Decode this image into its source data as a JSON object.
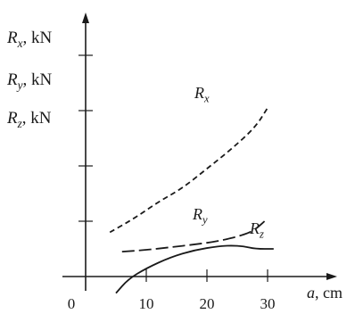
{
  "chart_data": {
    "type": "line",
    "title": "",
    "ylabels": [
      {
        "sym": "R",
        "sub": "x",
        "unit": ", kN"
      },
      {
        "sym": "R",
        "sub": "y",
        "unit": ", kN"
      },
      {
        "sym": "R",
        "sub": "z",
        "unit": ", kN"
      }
    ],
    "xlabel": {
      "sym": "a",
      "unit": ", cm"
    },
    "x_ticks": [
      "0",
      "10",
      "20",
      "30"
    ],
    "xlim": [
      0,
      34
    ],
    "y_tick_count": 4,
    "y_tick_labels": [],
    "grid": false,
    "series": [
      {
        "name": "R",
        "sub": "x",
        "style": "dashed",
        "x": [
          4,
          8,
          12,
          16,
          20,
          24,
          28,
          30
        ],
        "y": [
          0.8,
          1.05,
          1.35,
          1.6,
          1.95,
          2.3,
          2.7,
          3.05
        ]
      },
      {
        "name": "R",
        "sub": "y",
        "style": "long-dashed",
        "x": [
          6,
          10,
          14,
          18,
          22,
          26,
          28,
          30
        ],
        "y": [
          0.45,
          0.48,
          0.53,
          0.58,
          0.64,
          0.75,
          0.85,
          1.05
        ]
      },
      {
        "name": "R",
        "sub": "z",
        "style": "solid",
        "x": [
          5,
          7,
          10,
          14,
          18,
          22,
          24,
          26,
          28,
          31
        ],
        "y": [
          -0.3,
          -0.05,
          0.15,
          0.35,
          0.48,
          0.55,
          0.56,
          0.55,
          0.5,
          0.5
        ]
      }
    ]
  }
}
